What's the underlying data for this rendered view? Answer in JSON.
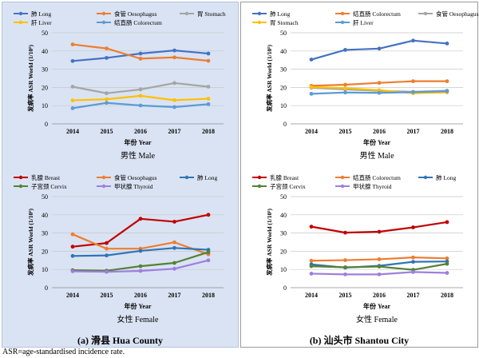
{
  "panels": [
    {
      "caption": "(a)  滑县 Hua County",
      "charts": [
        {
          "type": "line",
          "x": [
            "2014",
            "2015",
            "2016",
            "2017",
            "2018"
          ],
          "ylim": [
            0,
            50
          ],
          "yticks": [
            "0",
            "10",
            "20",
            "30",
            "40",
            "50"
          ],
          "ylabel": "发病率 ASR World (1/10⁵)",
          "xlabel": "年份 Year",
          "caption": "男性 Male",
          "legend": [
            [
              "肺 Long",
              "食管 Oesophagus",
              "胃 Stomach"
            ],
            [
              "肝 Liver",
              "结直肠 Colorectum"
            ]
          ],
          "series": [
            {
              "name": "肺 Long",
              "color": "#4472c4",
              "values": [
                34.5,
                36.2,
                38.6,
                40.3,
                38.6
              ]
            },
            {
              "name": "食管 Oesophagus",
              "color": "#ed7d31",
              "values": [
                43.6,
                41.4,
                35.8,
                36.5,
                34.6
              ]
            },
            {
              "name": "胃 Stomach",
              "color": "#a5a5a5",
              "values": [
                20.4,
                16.8,
                18.9,
                22.4,
                20.4
              ]
            },
            {
              "name": "肝 Liver",
              "color": "#ffc000",
              "values": [
                12.9,
                13.5,
                15.4,
                13.0,
                13.8
              ]
            },
            {
              "name": "结直肠 Colorectum",
              "color": "#5b9bd5",
              "values": [
                8.6,
                11.5,
                10.1,
                9.2,
                10.8
              ]
            }
          ]
        },
        {
          "type": "line",
          "x": [
            "2014",
            "2015",
            "2016",
            "2017",
            "2018"
          ],
          "ylim": [
            0,
            50
          ],
          "yticks": [
            "0",
            "10",
            "20",
            "30",
            "40",
            "50"
          ],
          "ylabel": "发病率 ASR World (1/10⁵)",
          "xlabel": "年份 Year",
          "caption": "女性 Female",
          "legend": [
            [
              "乳腺 Breast",
              "食管 Oesophagus",
              "肺 Long"
            ],
            [
              "子宫颈 Cervix",
              "甲状腺 Thyroid"
            ]
          ],
          "series": [
            {
              "name": "乳腺 Breast",
              "color": "#c00000",
              "values": [
                22.5,
                24.5,
                37.8,
                36.2,
                40.0
              ]
            },
            {
              "name": "食管 Oesophagus",
              "color": "#ed7d31",
              "values": [
                29.3,
                21.4,
                21.4,
                24.9,
                18.3
              ]
            },
            {
              "name": "肺 Long",
              "color": "#2e75b6",
              "values": [
                17.4,
                17.7,
                20.2,
                21.8,
                20.8
              ]
            },
            {
              "name": "子宫颈 Cervix",
              "color": "#548235",
              "values": [
                9.6,
                9.3,
                11.8,
                13.6,
                19.5
              ]
            },
            {
              "name": "甲状腺 Thyroid",
              "color": "#9e7ee0",
              "values": [
                9.0,
                8.7,
                9.2,
                10.4,
                15.0
              ]
            }
          ]
        }
      ]
    },
    {
      "caption": "(b)  汕头市 Shantou City",
      "charts": [
        {
          "type": "line",
          "x": [
            "2014",
            "2015",
            "2016",
            "2017",
            "2018"
          ],
          "ylim": [
            0,
            50
          ],
          "yticks": [
            "0",
            "10",
            "20",
            "30",
            "40",
            "50"
          ],
          "ylabel": "发病率 ASR World (1/10⁵)",
          "xlabel": "年份 Year",
          "caption": "男性 Male",
          "legend": [
            [
              "肺 Long",
              "结直肠 Colorectum",
              "食管 Oesophagus"
            ],
            [
              "胃 Stomach",
              "肝 Liver"
            ]
          ],
          "series": [
            {
              "name": "肺 Long",
              "color": "#4472c4",
              "values": [
                35.3,
                40.6,
                41.3,
                45.7,
                44.1
              ]
            },
            {
              "name": "结直肠 Colorectum",
              "color": "#ed7d31",
              "values": [
                20.9,
                21.5,
                22.5,
                23.4,
                23.4
              ]
            },
            {
              "name": "食管 Oesophagus",
              "color": "#a5a5a5",
              "values": [
                19.8,
                18.9,
                18.1,
                17.6,
                18.2
              ]
            },
            {
              "name": "胃 Stomach",
              "color": "#ffc000",
              "values": [
                20.2,
                19.6,
                18.5,
                16.8,
                17.3
              ]
            },
            {
              "name": "肝 Liver",
              "color": "#5b9bd5",
              "values": [
                16.5,
                17.2,
                17.0,
                17.4,
                17.9
              ]
            }
          ]
        },
        {
          "type": "line",
          "x": [
            "2014",
            "2015",
            "2016",
            "2017",
            "2018"
          ],
          "ylim": [
            0,
            50
          ],
          "yticks": [
            "0",
            "10",
            "20",
            "30",
            "40",
            "50"
          ],
          "ylabel": "发病率 ASR World (1/10⁵)",
          "xlabel": "年份 Year",
          "caption": "女性 Female",
          "legend": [
            [
              "乳腺 Breast",
              "结直肠 Colorectum",
              "肺 Long"
            ],
            [
              "子宫颈 Cervix",
              "甲状腺 Thyroid"
            ]
          ],
          "series": [
            {
              "name": "乳腺 Breast",
              "color": "#c00000",
              "values": [
                33.5,
                30.2,
                30.7,
                33.1,
                36.0
              ]
            },
            {
              "name": "结直肠 Colorectum",
              "color": "#ed7d31",
              "values": [
                14.8,
                15.1,
                15.6,
                16.6,
                16.1
              ]
            },
            {
              "name": "肺 Long",
              "color": "#2e75b6",
              "values": [
                12.8,
                11.0,
                12.0,
                14.2,
                14.4
              ]
            },
            {
              "name": "子宫颈 Cervix",
              "color": "#548235",
              "values": [
                11.8,
                11.2,
                11.6,
                9.8,
                13.1
              ]
            },
            {
              "name": "甲状腺 Thyroid",
              "color": "#9e7ee0",
              "values": [
                7.7,
                7.3,
                7.3,
                8.6,
                8.1
              ]
            }
          ]
        }
      ]
    }
  ],
  "footnote": "ASR=age-standardised incidence rate."
}
